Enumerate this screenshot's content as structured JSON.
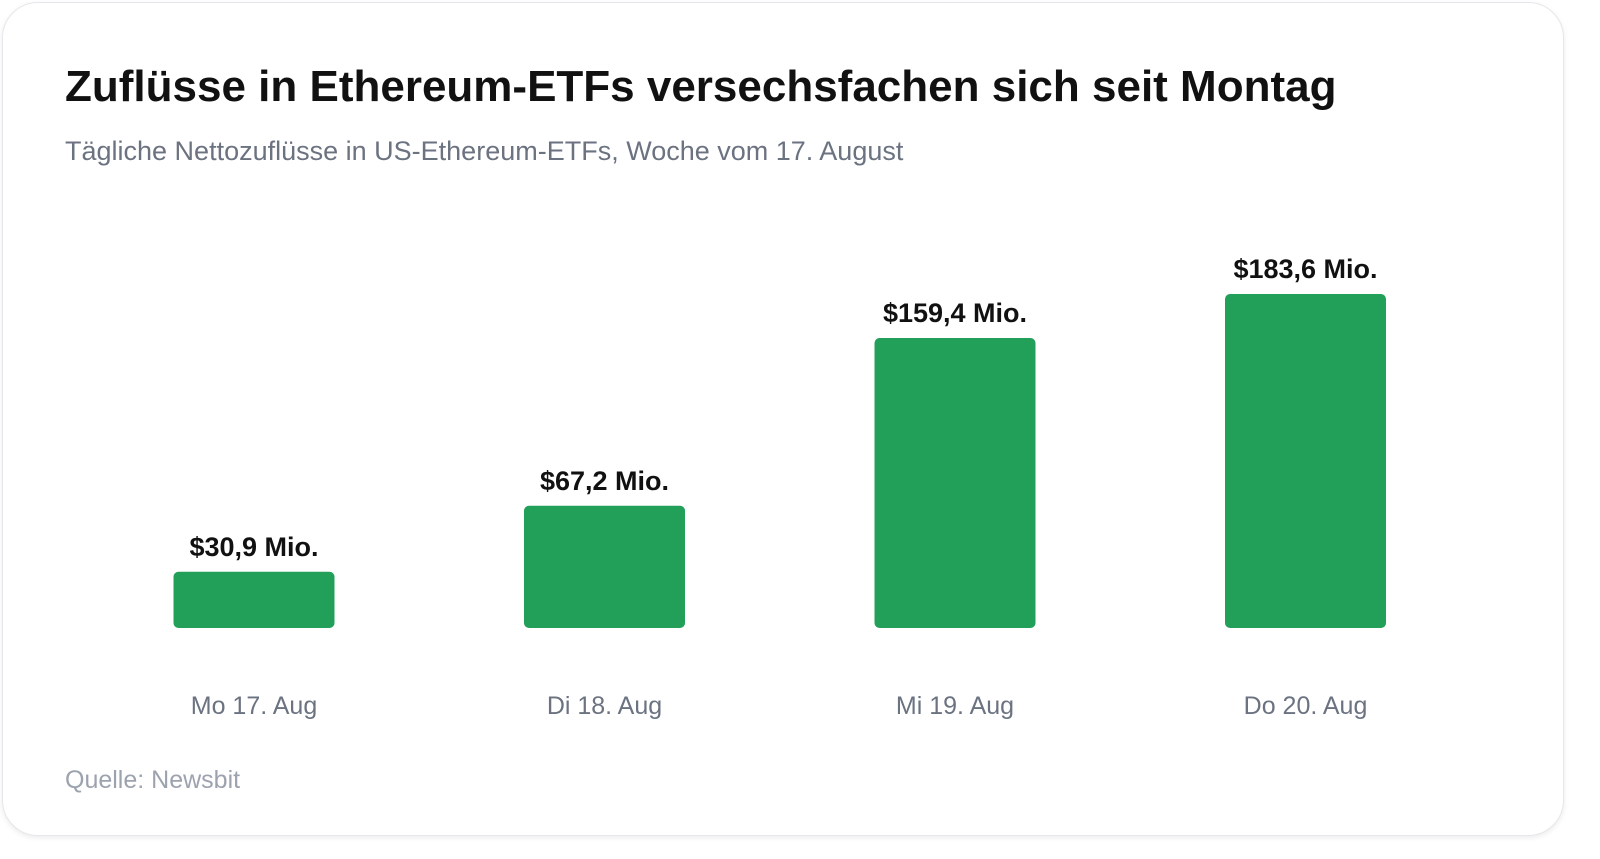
{
  "title": "Zuflüsse in Ethereum-ETFs versechsfachen sich seit Montag",
  "subtitle": "Tägliche Nettozuflüsse in US-Ethereum-ETFs, Woche vom 17. August",
  "source": "Quelle: Newsbit",
  "colors": {
    "bar": "#22a05a",
    "title": "#111111",
    "subtitle": "#6b7280",
    "source": "#9ca3af"
  },
  "chart_data": {
    "type": "bar",
    "title": "Zuflüsse in Ethereum-ETFs versechsfachen sich seit Montag",
    "subtitle": "Tägliche Nettozuflüsse in US-Ethereum-ETFs, Woche vom 17. August",
    "categories": [
      "Mo 17. Aug",
      "Di 18. Aug",
      "Mi 19. Aug",
      "Do 20. Aug"
    ],
    "values": [
      30.9,
      67.2,
      159.4,
      183.6
    ],
    "value_labels": [
      "$30,9 Mio.",
      "$67,2 Mio.",
      "$159,4 Mio.",
      "$183,6 Mio."
    ],
    "unit": "Mio. $",
    "xlabel": "",
    "ylabel": "",
    "grid": false,
    "legend": "none",
    "ylim": [
      0,
      183.6
    ]
  }
}
